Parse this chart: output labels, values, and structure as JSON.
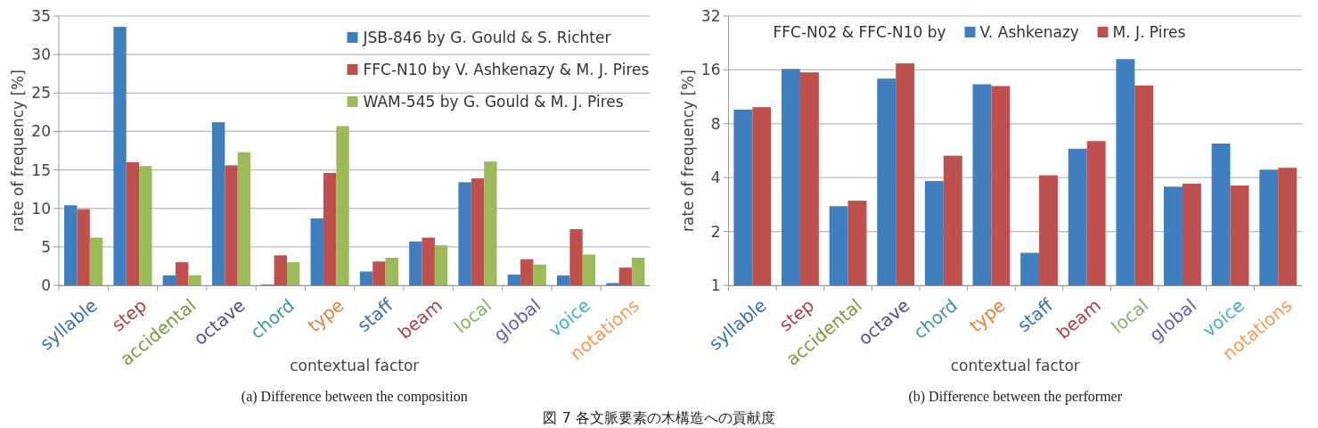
{
  "chart_data": [
    {
      "type": "bar",
      "xlabel": "contextual factor",
      "ylabel": "rate of frequency [%]",
      "categories": [
        "syllable",
        "step",
        "accidental",
        "octave",
        "chord",
        "type",
        "staff",
        "beam",
        "local",
        "global",
        "voice",
        "notations"
      ],
      "series": [
        {
          "name": "JSB-846 by G. Gould & S. Richter",
          "color": "#3f7fbf",
          "values": [
            10.4,
            33.6,
            1.3,
            21.2,
            0.1,
            8.7,
            1.8,
            5.7,
            13.4,
            1.4,
            1.3,
            0.3
          ]
        },
        {
          "name": "FFC-N10 by V. Ashkenazy & M. J. Pires",
          "color": "#c0504d",
          "values": [
            9.9,
            16.0,
            3.0,
            15.6,
            3.9,
            14.6,
            3.1,
            6.2,
            13.9,
            3.4,
            7.3,
            2.3
          ]
        },
        {
          "name": "WAM-545 by G. Gould & M. J. Pires",
          "color": "#9bbb59",
          "values": [
            6.2,
            15.5,
            1.3,
            17.3,
            3.0,
            20.7,
            3.6,
            5.2,
            16.1,
            2.7,
            4.0,
            3.6
          ]
        }
      ],
      "ylim": [
        0,
        35
      ],
      "yticks": [
        0,
        5,
        10,
        15,
        20,
        25,
        30,
        35
      ],
      "grid": "y",
      "legend": "top right",
      "annotations": [
        "(a) Difference between the composition",
        "図 7 各文脈要素の木構造への貢献度"
      ]
    },
    {
      "type": "bar",
      "xlabel": "contextual factor",
      "ylabel": "rate of frequency [%]",
      "legend_title": "FFC-N02 & FFC-N10 by",
      "categories": [
        "syllable",
        "step",
        "accidental",
        "octave",
        "chord",
        "type",
        "staff",
        "beam",
        "local",
        "global",
        "voice",
        "notations"
      ],
      "series": [
        {
          "name": "V. Ashkenazy",
          "color": "#3f7fbf",
          "values": [
            9.6,
            16.2,
            2.77,
            14.3,
            3.83,
            13.3,
            1.52,
            5.8,
            18.4,
            3.56,
            6.2,
            4.43
          ]
        },
        {
          "name": "M. J. Pires",
          "color": "#c0504d",
          "values": [
            9.9,
            15.5,
            2.97,
            17.4,
            5.3,
            13.0,
            4.12,
            6.4,
            13.1,
            3.7,
            3.61,
            4.54
          ]
        }
      ],
      "log": true,
      "ylim": [
        1,
        32
      ],
      "yticks": [
        1,
        2,
        4,
        8,
        16,
        32
      ],
      "grid": "y",
      "legend": "top",
      "annotations": [
        "(b) Difference between the performer"
      ]
    }
  ]
}
